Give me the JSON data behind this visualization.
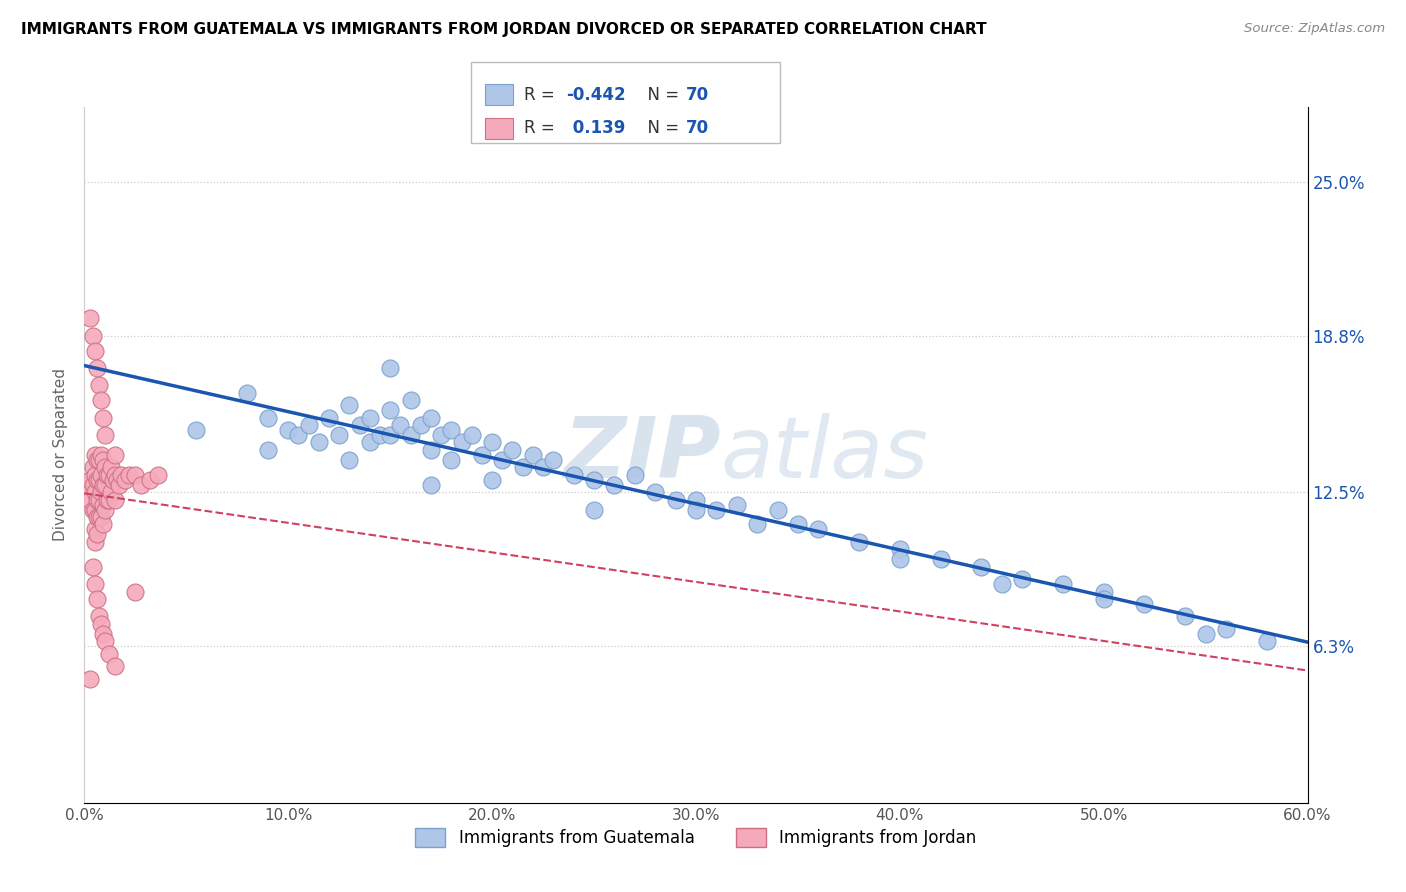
{
  "title": "IMMIGRANTS FROM GUATEMALA VS IMMIGRANTS FROM JORDAN DIVORCED OR SEPARATED CORRELATION CHART",
  "source": "Source: ZipAtlas.com",
  "ylabel": "Divorced or Separated",
  "xlim": [
    0.0,
    0.6
  ],
  "ylim": [
    0.0,
    0.28
  ],
  "xtick_labels": [
    "0.0%",
    "10.0%",
    "20.0%",
    "30.0%",
    "40.0%",
    "50.0%",
    "60.0%"
  ],
  "xtick_values": [
    0.0,
    0.1,
    0.2,
    0.3,
    0.4,
    0.5,
    0.6
  ],
  "ytick_labels": [
    "6.3%",
    "12.5%",
    "18.8%",
    "25.0%"
  ],
  "ytick_values": [
    0.063,
    0.125,
    0.188,
    0.25
  ],
  "r1": "-0.442",
  "n1": "70",
  "r2": "0.139",
  "n2": "70",
  "legend_label1": "Immigrants from Guatemala",
  "legend_label2": "Immigrants from Jordan",
  "color_blue": "#aec6e8",
  "color_pink": "#f5aabc",
  "line_color_blue": "#1a56b0",
  "line_color_pink": "#d04060",
  "watermark_zip": "ZIP",
  "watermark_atlas": "atlas",
  "guatemala_x": [
    0.055,
    0.08,
    0.09,
    0.1,
    0.105,
    0.11,
    0.115,
    0.12,
    0.125,
    0.13,
    0.135,
    0.14,
    0.14,
    0.145,
    0.15,
    0.15,
    0.155,
    0.16,
    0.16,
    0.165,
    0.17,
    0.17,
    0.175,
    0.18,
    0.18,
    0.185,
    0.19,
    0.195,
    0.2,
    0.205,
    0.21,
    0.215,
    0.22,
    0.225,
    0.23,
    0.24,
    0.25,
    0.26,
    0.27,
    0.28,
    0.29,
    0.3,
    0.31,
    0.32,
    0.33,
    0.34,
    0.36,
    0.38,
    0.4,
    0.42,
    0.44,
    0.46,
    0.48,
    0.5,
    0.52,
    0.54,
    0.56,
    0.58,
    0.15,
    0.2,
    0.25,
    0.3,
    0.35,
    0.4,
    0.45,
    0.5,
    0.55,
    0.09,
    0.13,
    0.17
  ],
  "guatemala_y": [
    0.15,
    0.165,
    0.155,
    0.15,
    0.148,
    0.152,
    0.145,
    0.155,
    0.148,
    0.16,
    0.152,
    0.155,
    0.145,
    0.148,
    0.158,
    0.148,
    0.152,
    0.162,
    0.148,
    0.152,
    0.155,
    0.142,
    0.148,
    0.15,
    0.138,
    0.145,
    0.148,
    0.14,
    0.145,
    0.138,
    0.142,
    0.135,
    0.14,
    0.135,
    0.138,
    0.132,
    0.13,
    0.128,
    0.132,
    0.125,
    0.122,
    0.122,
    0.118,
    0.12,
    0.112,
    0.118,
    0.11,
    0.105,
    0.102,
    0.098,
    0.095,
    0.09,
    0.088,
    0.085,
    0.08,
    0.075,
    0.07,
    0.065,
    0.175,
    0.13,
    0.118,
    0.118,
    0.112,
    0.098,
    0.088,
    0.082,
    0.068,
    0.142,
    0.138,
    0.128
  ],
  "jordan_x": [
    0.002,
    0.003,
    0.003,
    0.004,
    0.004,
    0.004,
    0.005,
    0.005,
    0.005,
    0.005,
    0.005,
    0.005,
    0.006,
    0.006,
    0.006,
    0.006,
    0.006,
    0.007,
    0.007,
    0.007,
    0.007,
    0.008,
    0.008,
    0.008,
    0.008,
    0.009,
    0.009,
    0.009,
    0.009,
    0.01,
    0.01,
    0.01,
    0.011,
    0.011,
    0.012,
    0.012,
    0.013,
    0.013,
    0.014,
    0.015,
    0.015,
    0.016,
    0.017,
    0.018,
    0.02,
    0.022,
    0.025,
    0.028,
    0.032,
    0.036,
    0.004,
    0.005,
    0.006,
    0.007,
    0.008,
    0.009,
    0.01,
    0.012,
    0.015,
    0.003,
    0.004,
    0.005,
    0.006,
    0.007,
    0.008,
    0.009,
    0.01,
    0.015,
    0.003,
    0.025
  ],
  "jordan_y": [
    0.128,
    0.13,
    0.122,
    0.135,
    0.128,
    0.118,
    0.14,
    0.132,
    0.125,
    0.118,
    0.11,
    0.105,
    0.138,
    0.13,
    0.122,
    0.115,
    0.108,
    0.138,
    0.13,
    0.122,
    0.115,
    0.14,
    0.132,
    0.125,
    0.115,
    0.138,
    0.128,
    0.12,
    0.112,
    0.135,
    0.128,
    0.118,
    0.132,
    0.122,
    0.132,
    0.122,
    0.135,
    0.125,
    0.13,
    0.132,
    0.122,
    0.13,
    0.128,
    0.132,
    0.13,
    0.132,
    0.132,
    0.128,
    0.13,
    0.132,
    0.095,
    0.088,
    0.082,
    0.075,
    0.072,
    0.068,
    0.065,
    0.06,
    0.055,
    0.195,
    0.188,
    0.182,
    0.175,
    0.168,
    0.162,
    0.155,
    0.148,
    0.14,
    0.05,
    0.085
  ]
}
